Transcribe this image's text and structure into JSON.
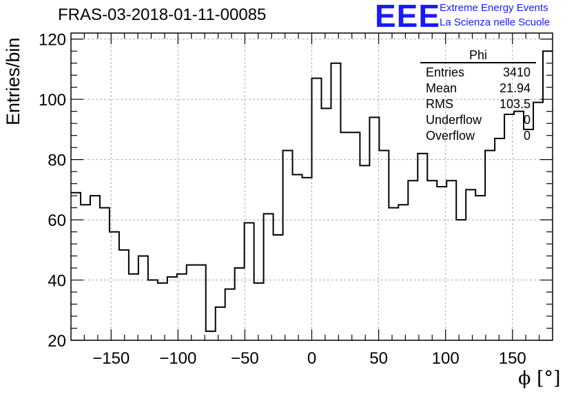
{
  "title": "FRAS-03-2018-01-11-00085",
  "logo": {
    "mark": "EEE",
    "line1": "Extreme Energy Events",
    "line2": "La Scienza nelle Scuole",
    "color": "#1a1aff"
  },
  "stats_box": {
    "title": "Phi",
    "rows": [
      {
        "label": "Entries",
        "value": "3410"
      },
      {
        "label": "Mean",
        "value": "21.94"
      },
      {
        "label": "RMS",
        "value": "103.5"
      },
      {
        "label": "Underflow",
        "value": "0"
      },
      {
        "label": "Overflow",
        "value": "0"
      }
    ]
  },
  "chart_data": {
    "type": "histogram",
    "ylabel": "Entries/bin",
    "xlabel": "ϕ [°]",
    "xlim": [
      -180,
      180
    ],
    "ylim": [
      20,
      122
    ],
    "bin_width": 7.2,
    "grid": true,
    "xticks": [
      -150,
      -100,
      -50,
      0,
      50,
      100,
      150
    ],
    "xtick_labels": [
      "−150",
      "−100",
      "−50",
      "0",
      "50",
      "100",
      "150"
    ],
    "yticks": [
      20,
      40,
      60,
      80,
      100,
      120
    ],
    "ytick_labels": [
      "20",
      "40",
      "60",
      "80",
      "100",
      "120"
    ],
    "values": [
      69,
      65,
      68,
      64,
      56,
      50,
      42,
      48,
      40,
      39,
      41,
      42,
      45,
      45,
      23,
      31,
      37,
      44,
      59,
      39,
      62,
      55,
      83,
      75,
      74,
      107,
      97,
      112,
      89,
      89,
      78,
      94,
      83,
      64,
      65,
      73,
      82,
      73,
      71,
      73,
      60,
      70,
      68,
      83,
      87,
      95,
      96,
      90,
      99,
      116
    ],
    "line_color": "#000000"
  }
}
